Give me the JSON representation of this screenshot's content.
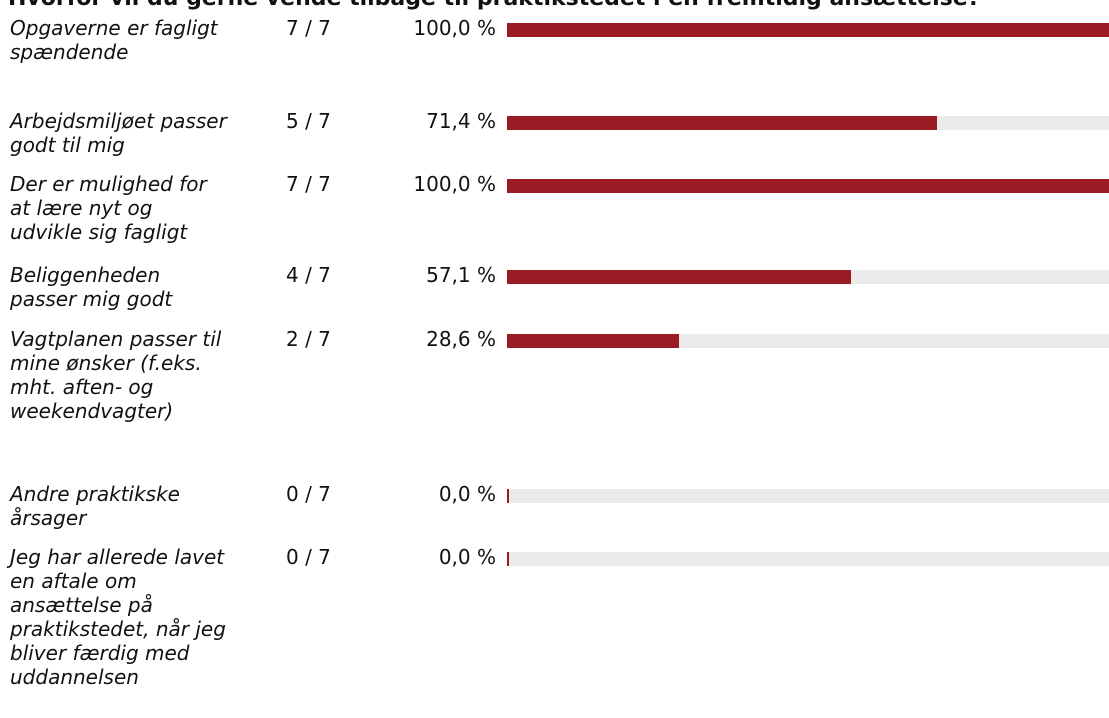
{
  "chart_data": {
    "type": "bar",
    "orientation": "horizontal",
    "title": "Hvorfor vil du gerne vende tilbage til praktikstedet i en fremtidig ansættelse?",
    "categories": [
      "Opgaverne er fagligt spændende",
      "Arbejdsmiljøet passer godt til mig",
      "Der er mulighed for at lære nyt og udvikle sig fagligt",
      "Beliggenheden passer mig godt",
      "Vagtplanen passer til mine ønsker (f.eks. mht. aften- og weekendvagter)",
      "Andre praktikske årsager",
      "Jeg har allerede lavet en aftale om ansættelse på praktikstedet, når jeg bliver færdig med uddannelsen"
    ],
    "counts": [
      "7 / 7",
      "5 / 7",
      "7 / 7",
      "4 / 7",
      "2 / 7",
      "0 / 7",
      "0 / 7"
    ],
    "percent_labels": [
      "100,0 %",
      "71,4 %",
      "100,0 %",
      "57,1 %",
      "28,6 %",
      "0,0 %",
      "0,0 %"
    ],
    "values": [
      100.0,
      71.4,
      100.0,
      57.1,
      28.6,
      0.0,
      0.0
    ],
    "xlim": [
      0,
      100
    ],
    "colors": {
      "bar": "#9b1b24",
      "track": "#ebebeb"
    },
    "grid": false,
    "legend": "none"
  }
}
